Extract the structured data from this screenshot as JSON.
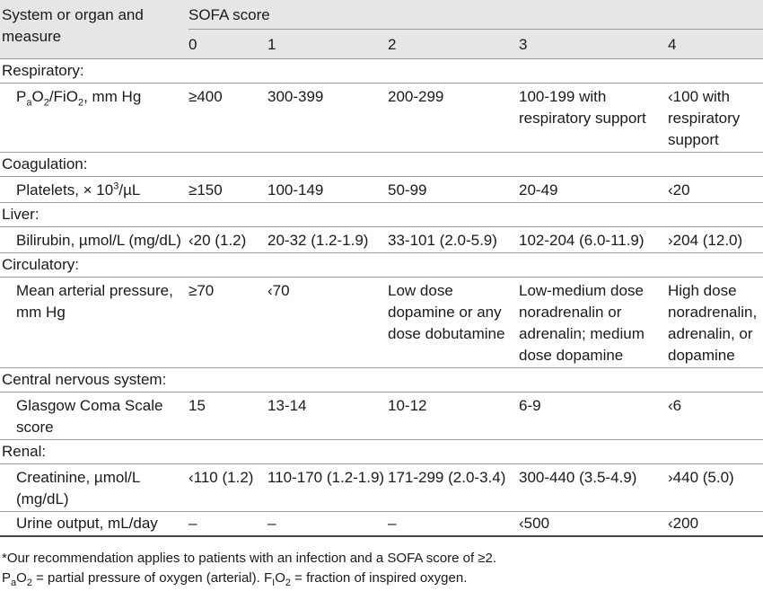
{
  "header": {
    "measure_label": "System or organ and measure",
    "sofa_label": "SOFA score",
    "scores": [
      "0",
      "1",
      "2",
      "3",
      "4"
    ]
  },
  "rows": {
    "respiratory": {
      "category": "Respiratory:",
      "measure_p": "P",
      "measure_a": "a",
      "measure_o2": "O",
      "measure_2a": "2",
      "measure_fio": "/FiO",
      "measure_2b": "2",
      "measure_unit": ", mm Hg",
      "values": [
        "≥400",
        "300-399",
        "200-299",
        "100-199 with respiratory support",
        "‹100 with respiratory support"
      ]
    },
    "coagulation": {
      "category": "Coagulation:",
      "measure_pre": "Platelets, × 10",
      "measure_sup": "3",
      "measure_post": "/µL",
      "values": [
        "≥150",
        "100-149",
        "50-99",
        "20-49",
        "‹20"
      ]
    },
    "liver": {
      "category": "Liver:",
      "measure": "Bilirubin, µmol/L (mg/dL)",
      "values": [
        "‹20 (1.2)",
        "20-32 (1.2-1.9)",
        "33-101 (2.0-5.9)",
        "102-204 (6.0-11.9)",
        "›204 (12.0)"
      ]
    },
    "circulatory": {
      "category": "Circulatory:",
      "measure": "Mean arterial pressure, mm Hg",
      "values": [
        "≥70",
        "‹70",
        "Low dose dopamine or any dose dobutamine",
        "Low-medium dose noradrenalin or adrenalin; medium dose dopamine",
        "High dose noradrenalin, adrenalin, or dopamine"
      ]
    },
    "cns": {
      "category": "Central nervous system:",
      "measure": "Glasgow Coma Scale score",
      "values": [
        "15",
        "13-14",
        "10-12",
        "6-9",
        "‹6"
      ]
    },
    "renal": {
      "category": "Renal:",
      "creatinine": {
        "measure": "Creatinine, µmol/L (mg/dL)",
        "values": [
          "‹110 (1.2)",
          "110-170 (1.2-1.9)",
          "171-299 (2.0-3.4)",
          "300-440 (3.5-4.9)",
          "›440 (5.0)"
        ]
      },
      "urine": {
        "measure": "Urine output, mL/day",
        "values": [
          "–",
          "–",
          "–",
          "‹500",
          "‹200"
        ]
      }
    }
  },
  "footnotes": {
    "line1": "*Our recommendation applies to patients with an infection and a SOFA score of ≥2.",
    "line2_p": "P",
    "line2_a": "a",
    "line2_o": "O",
    "line2_2a": "2",
    "line2_mid": " = partial pressure of oxygen (arterial). F",
    "line2_i": "I",
    "line2_o2": "O",
    "line2_2b": "2",
    "line2_end": " = fraction of inspired oxygen."
  }
}
